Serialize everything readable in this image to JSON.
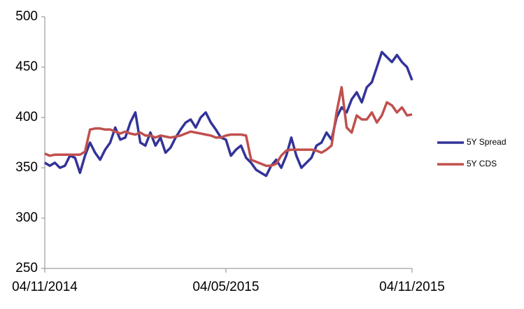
{
  "chart_data": {
    "type": "line",
    "categories": [
      "04/11/2014",
      null,
      null,
      null,
      null,
      null,
      null,
      null,
      null,
      null,
      null,
      null,
      null,
      null,
      null,
      null,
      null,
      null,
      null,
      null,
      null,
      null,
      null,
      null,
      null,
      null,
      null,
      null,
      null,
      null,
      null,
      null,
      null,
      null,
      null,
      null,
      "04/05/2015",
      null,
      null,
      null,
      null,
      null,
      null,
      null,
      null,
      null,
      null,
      null,
      null,
      null,
      null,
      null,
      null,
      null,
      null,
      null,
      null,
      null,
      null,
      null,
      null,
      null,
      null,
      null,
      null,
      null,
      null,
      null,
      null,
      null,
      null,
      null,
      null,
      "04/11/2015"
    ],
    "series": [
      {
        "name": "5Y Spread",
        "color": "#333399",
        "values": [
          355,
          352,
          355,
          350,
          352,
          362,
          360,
          345,
          362,
          375,
          365,
          358,
          368,
          375,
          390,
          378,
          380,
          395,
          405,
          375,
          372,
          385,
          372,
          380,
          365,
          370,
          380,
          388,
          395,
          398,
          390,
          400,
          405,
          395,
          388,
          380,
          378,
          362,
          368,
          372,
          360,
          355,
          348,
          345,
          342,
          352,
          358,
          350,
          362,
          380,
          362,
          350,
          355,
          360,
          372,
          375,
          385,
          378,
          400,
          410,
          405,
          418,
          425,
          415,
          430,
          435,
          450,
          465,
          460,
          455,
          462,
          455,
          450,
          437
        ]
      },
      {
        "name": "5Y CDS",
        "color": "#c0504d",
        "values": [
          364,
          362,
          363,
          363,
          363,
          363,
          363,
          363,
          366,
          388,
          389,
          389,
          388,
          388,
          386,
          384,
          386,
          384,
          383,
          385,
          382,
          382,
          380,
          382,
          381,
          380,
          381,
          382,
          384,
          386,
          385,
          384,
          383,
          382,
          380,
          380,
          382,
          383,
          383,
          383,
          382,
          358,
          356,
          354,
          352,
          352,
          354,
          362,
          367,
          368,
          368,
          368,
          368,
          368,
          367,
          365,
          368,
          372,
          405,
          430,
          390,
          385,
          402,
          398,
          398,
          405,
          395,
          402,
          415,
          412,
          405,
          410,
          402,
          403
        ]
      }
    ],
    "ylim": [
      250,
      500
    ],
    "yticks": [
      250,
      300,
      350,
      400,
      450,
      500
    ],
    "legend": "right"
  }
}
